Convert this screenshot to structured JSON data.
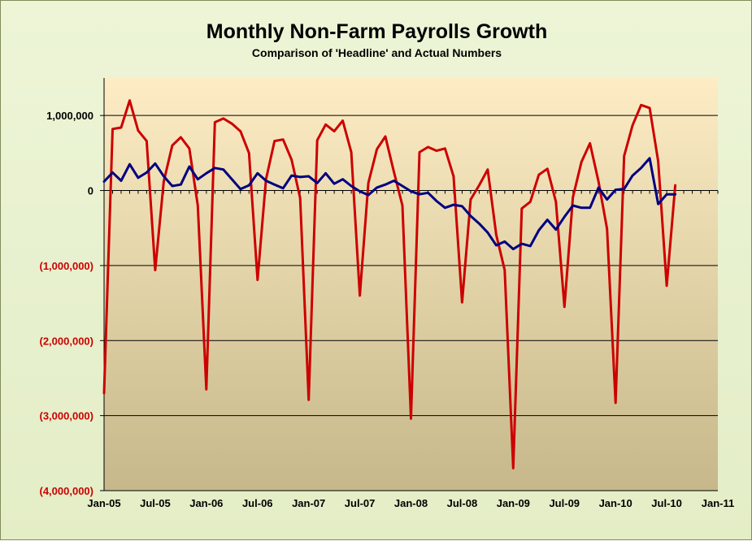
{
  "chart_data": {
    "type": "line",
    "title": "Monthly Non-Farm Payrolls Growth",
    "subtitle": "Comparison of 'Headline' and Actual Numbers",
    "xlabel": "",
    "ylabel": "",
    "x_tick_labels": [
      "Jan-05",
      "Jul-05",
      "Jan-06",
      "Jul-06",
      "Jan-07",
      "Jul-07",
      "Jan-08",
      "Jul-08",
      "Jan-09",
      "Jul-09",
      "Jan-10",
      "Jul-10",
      "Jan-11"
    ],
    "y_tick_labels": [
      "1,000,000",
      "0",
      "(1,000,000)",
      "(2,000,000)",
      "(3,000,000)",
      "(4,000,000)"
    ],
    "y_tick_values": [
      1000000,
      0,
      -1000000,
      -2000000,
      -3000000,
      -4000000
    ],
    "ylim": [
      -4000000,
      1500000
    ],
    "x_range_months": [
      "Jan-05",
      "Jan-11"
    ],
    "grid": "horizontal",
    "colors": {
      "headline": "#000080",
      "actual": "#cc0000",
      "negative_label": "#cc0000",
      "positive_label": "#000000",
      "plot_bg_top": "#fdecc4",
      "plot_bg_bottom": "#c6b88a"
    },
    "series": [
      {
        "key": "headline",
        "start": "Jan-05",
        "values": [
          120000,
          240000,
          130000,
          350000,
          170000,
          240000,
          360000,
          190000,
          60000,
          80000,
          320000,
          150000,
          230000,
          300000,
          280000,
          150000,
          20000,
          70000,
          230000,
          130000,
          80000,
          30000,
          200000,
          180000,
          190000,
          100000,
          230000,
          90000,
          150000,
          60000,
          -10000,
          -60000,
          40000,
          80000,
          130000,
          60000,
          -10000,
          -50000,
          -30000,
          -140000,
          -230000,
          -190000,
          -210000,
          -340000,
          -440000,
          -560000,
          -730000,
          -680000,
          -780000,
          -710000,
          -740000,
          -530000,
          -390000,
          -520000,
          -350000,
          -200000,
          -230000,
          -230000,
          40000,
          -120000,
          10000,
          20000,
          200000,
          300000,
          430000,
          -180000,
          -50000,
          -50000
        ]
      },
      {
        "key": "actual",
        "start": "Jan-05",
        "values": [
          -2700000,
          820000,
          840000,
          1200000,
          800000,
          660000,
          -1060000,
          120000,
          600000,
          710000,
          560000,
          -200000,
          -2650000,
          910000,
          960000,
          890000,
          790000,
          500000,
          -1190000,
          150000,
          660000,
          680000,
          410000,
          -100000,
          -2790000,
          670000,
          880000,
          790000,
          930000,
          510000,
          -1400000,
          100000,
          550000,
          720000,
          250000,
          -200000,
          -3040000,
          510000,
          580000,
          530000,
          560000,
          190000,
          -1490000,
          -120000,
          70000,
          280000,
          -590000,
          -1060000,
          -3700000,
          -240000,
          -150000,
          210000,
          290000,
          -150000,
          -1550000,
          -90000,
          380000,
          630000,
          120000,
          -510000,
          -2830000,
          460000,
          870000,
          1140000,
          1100000,
          390000,
          -1270000,
          70000
        ]
      }
    ]
  }
}
